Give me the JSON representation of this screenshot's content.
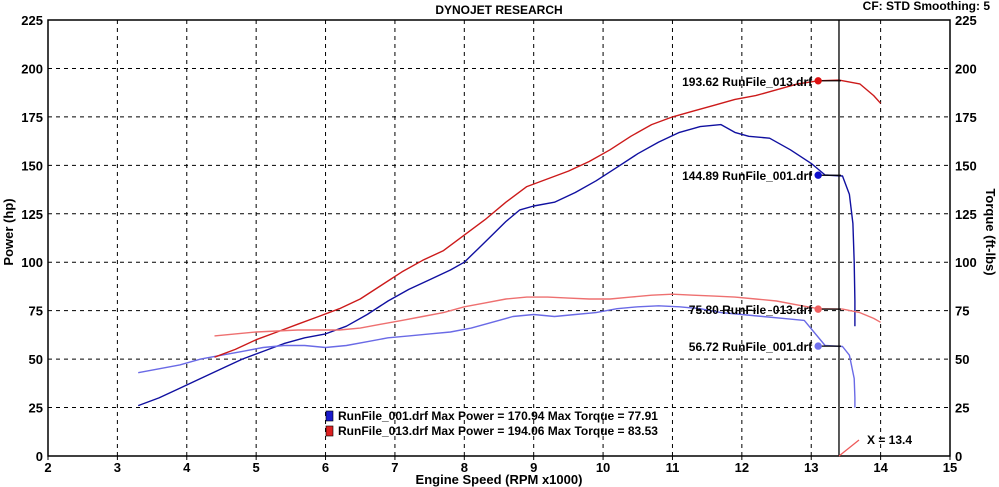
{
  "header": {
    "title": "DYNOJET RESEARCH",
    "settings": "CF: STD  Smoothing: 5"
  },
  "chart_data": {
    "type": "line",
    "xlabel": "Engine Speed (RPM x1000)",
    "ylabel_left": "Power (hp)",
    "ylabel_right": "Torque (ft-lbs)",
    "xlim": [
      2,
      15
    ],
    "ylim": [
      0,
      225
    ],
    "x_ticks": [
      "2",
      "3",
      "4",
      "5",
      "6",
      "7",
      "8",
      "9",
      "10",
      "11",
      "12",
      "13",
      "14",
      "15"
    ],
    "y_ticks": [
      "0",
      "25",
      "50",
      "75",
      "100",
      "125",
      "150",
      "175",
      "200",
      "225"
    ],
    "grid": true,
    "colors": {
      "run001_power": "#1010a0",
      "run001_torque": "#6a6ae6",
      "run013_power": "#cc1a1a",
      "run013_torque": "#ee7070"
    },
    "series": [
      {
        "name": "RunFile_001.drf",
        "kind": "power",
        "color": "#1010a0",
        "points": [
          [
            3.3,
            26
          ],
          [
            3.6,
            30
          ],
          [
            3.9,
            35
          ],
          [
            4.2,
            40
          ],
          [
            4.5,
            45
          ],
          [
            4.8,
            50
          ],
          [
            5.1,
            54
          ],
          [
            5.4,
            58
          ],
          [
            5.7,
            61
          ],
          [
            6.0,
            63
          ],
          [
            6.3,
            67
          ],
          [
            6.6,
            73
          ],
          [
            6.9,
            80
          ],
          [
            7.2,
            86
          ],
          [
            7.5,
            91
          ],
          [
            7.8,
            96
          ],
          [
            8.0,
            100
          ],
          [
            8.2,
            107
          ],
          [
            8.4,
            114
          ],
          [
            8.6,
            121
          ],
          [
            8.8,
            127
          ],
          [
            9.0,
            129
          ],
          [
            9.3,
            131
          ],
          [
            9.6,
            136
          ],
          [
            9.9,
            142
          ],
          [
            10.2,
            149
          ],
          [
            10.5,
            156
          ],
          [
            10.8,
            162
          ],
          [
            11.1,
            167
          ],
          [
            11.4,
            170
          ],
          [
            11.7,
            171
          ],
          [
            11.9,
            167
          ],
          [
            12.1,
            165
          ],
          [
            12.4,
            164
          ],
          [
            12.7,
            158
          ],
          [
            13.0,
            151
          ],
          [
            13.2,
            145
          ],
          [
            13.45,
            144.5
          ],
          [
            13.55,
            135
          ],
          [
            13.6,
            120
          ],
          [
            13.62,
            100
          ],
          [
            13.63,
            80
          ],
          [
            13.63,
            67
          ]
        ]
      },
      {
        "name": "RunFile_001.drf",
        "kind": "torque",
        "color": "#6a6ae6",
        "points": [
          [
            3.3,
            43
          ],
          [
            3.6,
            45
          ],
          [
            3.9,
            47
          ],
          [
            4.2,
            50
          ],
          [
            4.5,
            52
          ],
          [
            4.8,
            54
          ],
          [
            5.1,
            56
          ],
          [
            5.4,
            57
          ],
          [
            5.7,
            57
          ],
          [
            6.0,
            56
          ],
          [
            6.3,
            57
          ],
          [
            6.6,
            59
          ],
          [
            6.9,
            61
          ],
          [
            7.2,
            62
          ],
          [
            7.5,
            63
          ],
          [
            7.8,
            64
          ],
          [
            8.1,
            66
          ],
          [
            8.4,
            69
          ],
          [
            8.7,
            72
          ],
          [
            9.0,
            73
          ],
          [
            9.3,
            72
          ],
          [
            9.6,
            73
          ],
          [
            9.9,
            74
          ],
          [
            10.2,
            76
          ],
          [
            10.5,
            77
          ],
          [
            10.8,
            77.5
          ],
          [
            11.1,
            77
          ],
          [
            11.4,
            76
          ],
          [
            11.7,
            74
          ],
          [
            12.0,
            73
          ],
          [
            12.3,
            72
          ],
          [
            12.6,
            71
          ],
          [
            12.9,
            70
          ],
          [
            13.2,
            57
          ],
          [
            13.45,
            56.5
          ],
          [
            13.55,
            52
          ],
          [
            13.62,
            40
          ],
          [
            13.63,
            30
          ],
          [
            13.63,
            25
          ]
        ]
      },
      {
        "name": "RunFile_013.drf",
        "kind": "power",
        "color": "#cc1a1a",
        "points": [
          [
            4.4,
            51
          ],
          [
            4.7,
            55
          ],
          [
            5.0,
            60
          ],
          [
            5.3,
            64
          ],
          [
            5.6,
            68
          ],
          [
            5.9,
            72
          ],
          [
            6.2,
            76
          ],
          [
            6.5,
            81
          ],
          [
            6.8,
            88
          ],
          [
            7.1,
            95
          ],
          [
            7.4,
            101
          ],
          [
            7.7,
            106
          ],
          [
            8.0,
            114
          ],
          [
            8.3,
            122
          ],
          [
            8.6,
            131
          ],
          [
            8.9,
            139
          ],
          [
            9.2,
            143
          ],
          [
            9.5,
            147
          ],
          [
            9.8,
            152
          ],
          [
            10.1,
            158
          ],
          [
            10.4,
            165
          ],
          [
            10.7,
            171
          ],
          [
            11.0,
            175
          ],
          [
            11.3,
            178
          ],
          [
            11.6,
            181
          ],
          [
            11.9,
            184
          ],
          [
            12.2,
            186
          ],
          [
            12.5,
            189
          ],
          [
            12.8,
            192
          ],
          [
            13.1,
            193.6
          ],
          [
            13.4,
            194
          ],
          [
            13.7,
            192
          ],
          [
            13.9,
            186
          ],
          [
            14.0,
            182
          ]
        ]
      },
      {
        "name": "RunFile_013.drf",
        "kind": "torque",
        "color": "#ee7070",
        "points": [
          [
            4.4,
            62
          ],
          [
            4.7,
            63
          ],
          [
            5.0,
            64
          ],
          [
            5.3,
            64.5
          ],
          [
            5.6,
            65
          ],
          [
            5.9,
            65
          ],
          [
            6.2,
            65
          ],
          [
            6.5,
            66
          ],
          [
            6.8,
            68
          ],
          [
            7.1,
            70
          ],
          [
            7.4,
            72
          ],
          [
            7.7,
            74
          ],
          [
            8.0,
            77
          ],
          [
            8.3,
            79
          ],
          [
            8.6,
            81
          ],
          [
            8.9,
            82
          ],
          [
            9.2,
            82
          ],
          [
            9.5,
            81.5
          ],
          [
            9.8,
            81
          ],
          [
            10.1,
            81
          ],
          [
            10.4,
            82
          ],
          [
            10.7,
            83
          ],
          [
            11.0,
            83.5
          ],
          [
            11.3,
            83
          ],
          [
            11.6,
            82.5
          ],
          [
            11.9,
            82
          ],
          [
            12.2,
            81
          ],
          [
            12.5,
            80
          ],
          [
            12.8,
            78
          ],
          [
            13.1,
            76
          ],
          [
            13.45,
            75.8
          ],
          [
            13.7,
            74
          ],
          [
            13.9,
            71
          ],
          [
            14.0,
            69
          ]
        ]
      }
    ],
    "cursor": {
      "x": 13.4,
      "label": "X = 13.4"
    },
    "markers": [
      {
        "label": "193.62 RunFile_013.drf",
        "x": 13.1,
        "y": 193.62,
        "color": "#dd1010"
      },
      {
        "label": "144.89 RunFile_001.drf",
        "x": 13.1,
        "y": 144.89,
        "color": "#1010cc"
      },
      {
        "label": "75.80 RunFile_013.drf",
        "x": 13.1,
        "y": 75.8,
        "color": "#f06060"
      },
      {
        "label": "56.72 RunFile_001.drf",
        "x": 13.1,
        "y": 56.72,
        "color": "#7070ee"
      }
    ],
    "legend": [
      {
        "text": "RunFile_001.drf Max Power = 170.94     Max Torque = 77.91",
        "color": "#1a1acc"
      },
      {
        "text": "RunFile_013.drf Max Power = 194.06     Max Torque = 83.53",
        "color": "#dd2020"
      }
    ]
  }
}
